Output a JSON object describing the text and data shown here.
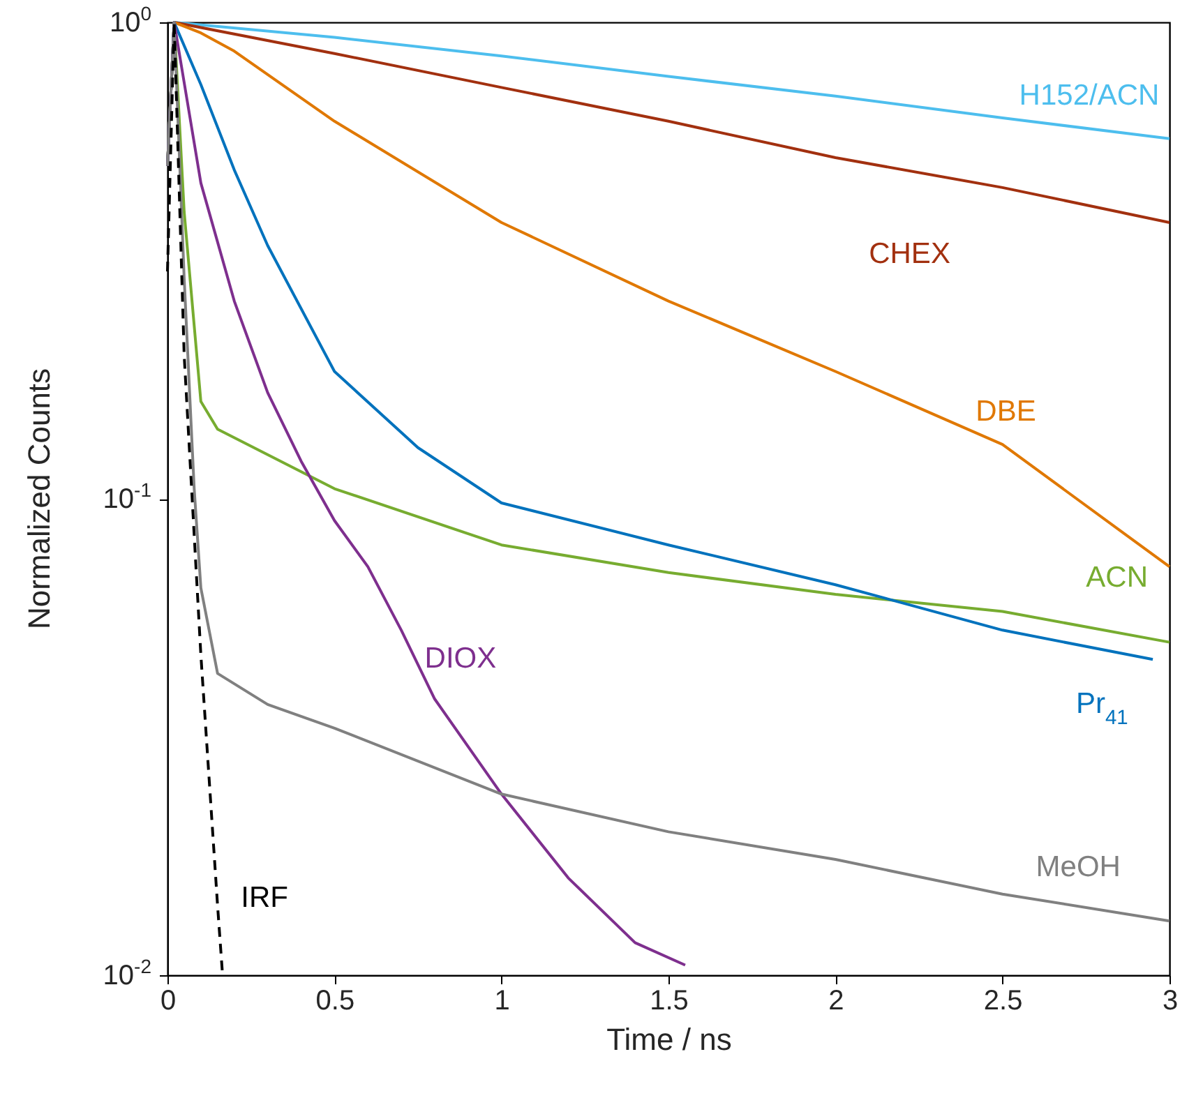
{
  "chart_data": {
    "type": "line",
    "xlabel": "Time / ns",
    "ylabel": "Normalized Counts",
    "log": "y",
    "xlim": [
      0,
      3
    ],
    "ylim": [
      0.01,
      1
    ],
    "xticks": [
      0,
      0.5,
      1,
      1.5,
      2,
      2.5,
      3
    ],
    "yticks": [
      {
        "value": 0.01,
        "label": "10$^{-2}$"
      },
      {
        "value": 0.1,
        "label": "10$^{-1}$"
      },
      {
        "value": 1,
        "label": "10$^{0}$"
      }
    ],
    "grid": false,
    "line_style": "solid",
    "series": [
      {
        "name": "H152/ACN",
        "color": "#4dbeee",
        "x": [
          0,
          0.02,
          0.5,
          1,
          1.5,
          2,
          2.5,
          3
        ],
        "values": [
          0.5,
          1,
          0.93,
          0.85,
          0.77,
          0.7,
          0.63,
          0.57
        ]
      },
      {
        "name": "CHEX",
        "color": "#a2300f",
        "x": [
          0,
          0.02,
          0.5,
          1,
          1.5,
          2,
          2.5,
          3
        ],
        "values": [
          0.5,
          1,
          0.86,
          0.73,
          0.62,
          0.52,
          0.45,
          0.38
        ]
      },
      {
        "name": "DBE",
        "color": "#e07800",
        "x": [
          0,
          0.02,
          0.1,
          0.2,
          0.5,
          1,
          1.5,
          2,
          2.5,
          3
        ],
        "values": [
          0.5,
          1,
          0.95,
          0.87,
          0.62,
          0.38,
          0.26,
          0.185,
          0.13,
          0.072
        ]
      },
      {
        "name": "ACN",
        "color": "#77ac30",
        "x": [
          0,
          0.02,
          0.05,
          0.1,
          0.15,
          0.5,
          1,
          1.5,
          2,
          2.5,
          3
        ],
        "values": [
          0.5,
          1,
          0.4,
          0.16,
          0.14,
          0.105,
          0.08,
          0.07,
          0.063,
          0.058,
          0.05
        ]
      },
      {
        "name": "Pr$_{41}$",
        "color": "#0072bd",
        "x": [
          0,
          0.02,
          0.1,
          0.2,
          0.3,
          0.5,
          0.75,
          1,
          1.5,
          2,
          2.5,
          2.95
        ],
        "values": [
          0.5,
          1,
          0.74,
          0.49,
          0.34,
          0.185,
          0.128,
          0.098,
          0.08,
          0.066,
          0.053,
          0.046
        ]
      },
      {
        "name": "DIOX",
        "color": "#7e2f8e",
        "x": [
          0,
          0.02,
          0.1,
          0.2,
          0.3,
          0.4,
          0.5,
          0.6,
          0.7,
          0.8,
          1,
          1.2,
          1.4,
          1.55
        ],
        "values": [
          0.5,
          1,
          0.46,
          0.26,
          0.167,
          0.12,
          0.09,
          0.072,
          0.053,
          0.038,
          0.024,
          0.016,
          0.0117,
          0.0105
        ]
      },
      {
        "name": "MeOH",
        "color": "#808080",
        "x": [
          0,
          0.02,
          0.05,
          0.08,
          0.1,
          0.15,
          0.3,
          0.5,
          1,
          1.5,
          2,
          2.5,
          3
        ],
        "values": [
          0.5,
          1,
          0.29,
          0.105,
          0.065,
          0.043,
          0.037,
          0.033,
          0.024,
          0.02,
          0.0175,
          0.0148,
          0.013
        ]
      },
      {
        "name": "IRF",
        "color": "#000000",
        "line_style": "dashed",
        "x": [
          0,
          0.02,
          0.05,
          0.1,
          0.15,
          0.165
        ],
        "values": [
          0.3,
          1,
          0.2,
          0.047,
          0.014,
          0.01
        ]
      }
    ]
  }
}
